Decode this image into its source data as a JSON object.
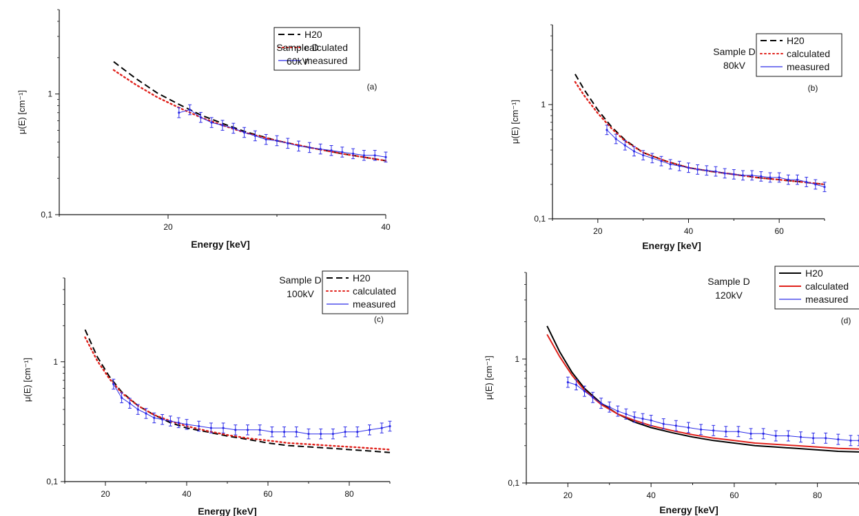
{
  "chart_data": [
    {
      "panel": "(a)",
      "type": "line",
      "xlabel": "Energy [keV]",
      "ylabel": "μ(E) [cm⁻¹]",
      "xlim": [
        10,
        40
      ],
      "ylim": [
        0.1,
        5
      ],
      "yscale": "log",
      "xticks": [
        20,
        40
      ],
      "xtick_labels": [
        "20",
        "40"
      ],
      "yticks": [
        0.1,
        1
      ],
      "ytick_labels": [
        "0,1",
        "1"
      ],
      "annotation": [
        "Sample D",
        "60kV"
      ],
      "legend_position": "top-right",
      "series": [
        {
          "name": "H20",
          "style": "dash",
          "color": "#000000",
          "x": [
            15,
            17,
            19,
            21,
            23,
            25,
            27,
            30,
            33,
            36,
            40
          ],
          "y": [
            1.85,
            1.35,
            1.02,
            0.82,
            0.67,
            0.57,
            0.49,
            0.41,
            0.36,
            0.32,
            0.28
          ]
        },
        {
          "name": "calculated",
          "style": "dot",
          "color": "#e0201a",
          "x": [
            15,
            17,
            19,
            21,
            23,
            25,
            27,
            30,
            33,
            36,
            40
          ],
          "y": [
            1.58,
            1.2,
            0.94,
            0.77,
            0.64,
            0.55,
            0.48,
            0.41,
            0.36,
            0.32,
            0.28
          ]
        },
        {
          "name": "measured",
          "style": "errorbar",
          "color": "#2a2ae8",
          "x": [
            21,
            22,
            23,
            24,
            25,
            26,
            27,
            28,
            29,
            30,
            31,
            32,
            33,
            34,
            35,
            36,
            37,
            38,
            39,
            40
          ],
          "y": [
            0.7,
            0.74,
            0.64,
            0.58,
            0.55,
            0.52,
            0.48,
            0.45,
            0.42,
            0.41,
            0.39,
            0.37,
            0.36,
            0.35,
            0.34,
            0.33,
            0.32,
            0.31,
            0.31,
            0.3
          ]
        }
      ]
    },
    {
      "panel": "(b)",
      "type": "line",
      "xlabel": "Energy [keV]",
      "ylabel": "μ(E) [cm⁻¹]",
      "xlim": [
        10,
        70
      ],
      "ylim": [
        0.1,
        5
      ],
      "yscale": "log",
      "xticks": [
        20,
        40,
        60
      ],
      "xtick_labels": [
        "20",
        "40",
        "60"
      ],
      "yticks": [
        0.1,
        1
      ],
      "ytick_labels": [
        "0,1",
        "1"
      ],
      "annotation": [
        "Sample D",
        "80kV"
      ],
      "legend_position": "top-right",
      "series": [
        {
          "name": "H20",
          "style": "dash",
          "color": "#000000",
          "x": [
            15,
            17,
            20,
            23,
            26,
            30,
            35,
            40,
            45,
            50,
            55,
            60,
            65,
            70
          ],
          "y": [
            1.85,
            1.35,
            0.9,
            0.64,
            0.49,
            0.38,
            0.32,
            0.28,
            0.26,
            0.245,
            0.23,
            0.22,
            0.21,
            0.2
          ]
        },
        {
          "name": "calculated",
          "style": "dot",
          "color": "#e0201a",
          "x": [
            15,
            17,
            20,
            23,
            26,
            30,
            35,
            40,
            45,
            50,
            55,
            60,
            65,
            70
          ],
          "y": [
            1.58,
            1.2,
            0.84,
            0.62,
            0.48,
            0.38,
            0.32,
            0.28,
            0.26,
            0.245,
            0.23,
            0.22,
            0.21,
            0.2
          ]
        },
        {
          "name": "measured",
          "style": "errorbar",
          "color": "#2a2ae8",
          "x": [
            22,
            24,
            26,
            28,
            30,
            32,
            34,
            36,
            38,
            40,
            42,
            44,
            46,
            48,
            50,
            52,
            54,
            56,
            58,
            60,
            62,
            64,
            66,
            68,
            70
          ],
          "y": [
            0.6,
            0.5,
            0.44,
            0.39,
            0.36,
            0.34,
            0.32,
            0.3,
            0.29,
            0.28,
            0.27,
            0.265,
            0.26,
            0.25,
            0.245,
            0.24,
            0.24,
            0.235,
            0.23,
            0.23,
            0.22,
            0.22,
            0.21,
            0.2,
            0.19
          ]
        }
      ]
    },
    {
      "panel": "(c)",
      "type": "line",
      "xlabel": "Energy [keV]",
      "ylabel": "μ(E) [cm⁻¹]",
      "xlim": [
        10,
        90
      ],
      "ylim": [
        0.1,
        5
      ],
      "yscale": "log",
      "xticks": [
        20,
        40,
        60,
        80
      ],
      "xtick_labels": [
        "20",
        "40",
        "60",
        "80"
      ],
      "yticks": [
        0.1,
        1
      ],
      "ytick_labels": [
        "0,1",
        "1"
      ],
      "annotation": [
        "Sample D",
        "100kV"
      ],
      "legend_position": "top-right",
      "series": [
        {
          "name": "H20",
          "style": "dash",
          "color": "#000000",
          "x": [
            15,
            18,
            21,
            24,
            28,
            32,
            36,
            40,
            45,
            50,
            55,
            60,
            65,
            70,
            75,
            80,
            85,
            90
          ],
          "y": [
            1.85,
            1.1,
            0.75,
            0.56,
            0.43,
            0.36,
            0.31,
            0.28,
            0.26,
            0.24,
            0.225,
            0.21,
            0.2,
            0.195,
            0.19,
            0.185,
            0.18,
            0.175
          ]
        },
        {
          "name": "calculated",
          "style": "dot",
          "color": "#e0201a",
          "x": [
            15,
            18,
            21,
            24,
            28,
            32,
            36,
            40,
            45,
            50,
            55,
            60,
            65,
            70,
            75,
            80,
            85,
            90
          ],
          "y": [
            1.6,
            1.02,
            0.72,
            0.55,
            0.43,
            0.36,
            0.32,
            0.29,
            0.265,
            0.245,
            0.23,
            0.22,
            0.21,
            0.205,
            0.2,
            0.195,
            0.19,
            0.185
          ]
        },
        {
          "name": "measured",
          "style": "errorbar",
          "color": "#2a2ae8",
          "x": [
            22,
            24,
            26,
            28,
            30,
            32,
            34,
            36,
            38,
            40,
            43,
            46,
            49,
            52,
            55,
            58,
            61,
            64,
            67,
            70,
            73,
            76,
            79,
            82,
            85,
            88,
            90
          ],
          "y": [
            0.65,
            0.5,
            0.45,
            0.4,
            0.37,
            0.34,
            0.33,
            0.32,
            0.31,
            0.3,
            0.29,
            0.28,
            0.28,
            0.27,
            0.27,
            0.27,
            0.26,
            0.26,
            0.26,
            0.25,
            0.25,
            0.25,
            0.26,
            0.26,
            0.27,
            0.28,
            0.29
          ]
        }
      ]
    },
    {
      "panel": "(d)",
      "type": "line",
      "xlabel": "Energy [keV]",
      "ylabel": "μ(E) [cm⁻¹]",
      "xlim": [
        10,
        90
      ],
      "ylim": [
        0.1,
        5
      ],
      "yscale": "log",
      "xticks": [
        20,
        40,
        60,
        80
      ],
      "xtick_labels": [
        "20",
        "40",
        "60",
        "80"
      ],
      "yticks": [
        0.1,
        1
      ],
      "ytick_labels": [
        "0,1",
        "1"
      ],
      "annotation": [
        "Sample D",
        "120kV"
      ],
      "legend_position": "top-right",
      "series": [
        {
          "name": "H20",
          "style": "solid",
          "color": "#000000",
          "x": [
            15,
            18,
            21,
            24,
            28,
            32,
            36,
            40,
            45,
            50,
            55,
            60,
            65,
            70,
            75,
            80,
            85,
            90
          ],
          "y": [
            1.85,
            1.15,
            0.78,
            0.58,
            0.44,
            0.36,
            0.31,
            0.28,
            0.255,
            0.235,
            0.22,
            0.21,
            0.2,
            0.195,
            0.19,
            0.185,
            0.18,
            0.178
          ]
        },
        {
          "name": "calculated",
          "style": "solid",
          "color": "#e0201a",
          "x": [
            15,
            18,
            21,
            24,
            28,
            32,
            36,
            40,
            45,
            50,
            55,
            60,
            65,
            70,
            75,
            80,
            85,
            90
          ],
          "y": [
            1.58,
            1.05,
            0.74,
            0.56,
            0.43,
            0.36,
            0.32,
            0.29,
            0.265,
            0.245,
            0.23,
            0.22,
            0.21,
            0.205,
            0.2,
            0.195,
            0.19,
            0.188
          ]
        },
        {
          "name": "measured",
          "style": "errorbar",
          "color": "#2a2ae8",
          "x": [
            20,
            22,
            24,
            26,
            28,
            30,
            32,
            34,
            36,
            38,
            40,
            43,
            46,
            49,
            52,
            55,
            58,
            61,
            64,
            67,
            70,
            73,
            76,
            79,
            82,
            85,
            88,
            90
          ],
          "y": [
            0.65,
            0.62,
            0.55,
            0.49,
            0.44,
            0.41,
            0.38,
            0.36,
            0.34,
            0.33,
            0.32,
            0.3,
            0.29,
            0.28,
            0.27,
            0.265,
            0.26,
            0.26,
            0.25,
            0.25,
            0.24,
            0.24,
            0.235,
            0.23,
            0.23,
            0.225,
            0.22,
            0.22
          ]
        }
      ]
    }
  ]
}
